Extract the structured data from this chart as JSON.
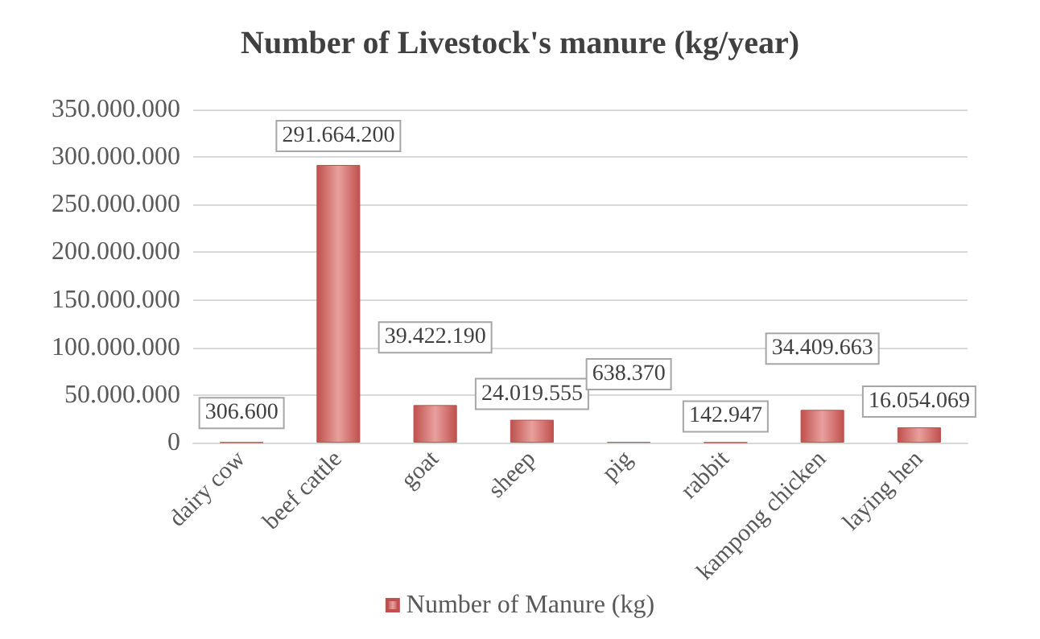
{
  "chart_data": {
    "type": "bar",
    "title": "Number of Livestock's manure (kg/year)",
    "categories": [
      "dairy cow",
      "beef cattle",
      "goat",
      "sheep",
      "pig",
      "rabbit",
      "kampong chicken",
      "laying hen"
    ],
    "series": [
      {
        "name": "Number of Manure (kg)",
        "color": "#c0504d",
        "values": [
          306600,
          291664200,
          39422190,
          24019555,
          638370,
          142947,
          34409663,
          16054069
        ],
        "value_labels": [
          "306.600",
          "291.664.200",
          "39.422.190",
          "24.019.555",
          "638.370",
          "142.947",
          "34.409.663",
          "16.054.069"
        ]
      }
    ],
    "ylim": [
      0,
      350000000
    ],
    "yticks": [
      {
        "value": 0,
        "label": "0"
      },
      {
        "value": 50000000,
        "label": "50.000.000"
      },
      {
        "value": 100000000,
        "label": "100.000.000"
      },
      {
        "value": 150000000,
        "label": "150.000.000"
      },
      {
        "value": 200000000,
        "label": "200.000.000"
      },
      {
        "value": 250000000,
        "label": "250.000.000"
      },
      {
        "value": 300000000,
        "label": "300.000.000"
      },
      {
        "value": 350000000,
        "label": "350.000.000"
      }
    ],
    "grid": "y",
    "legend": "bottom"
  }
}
